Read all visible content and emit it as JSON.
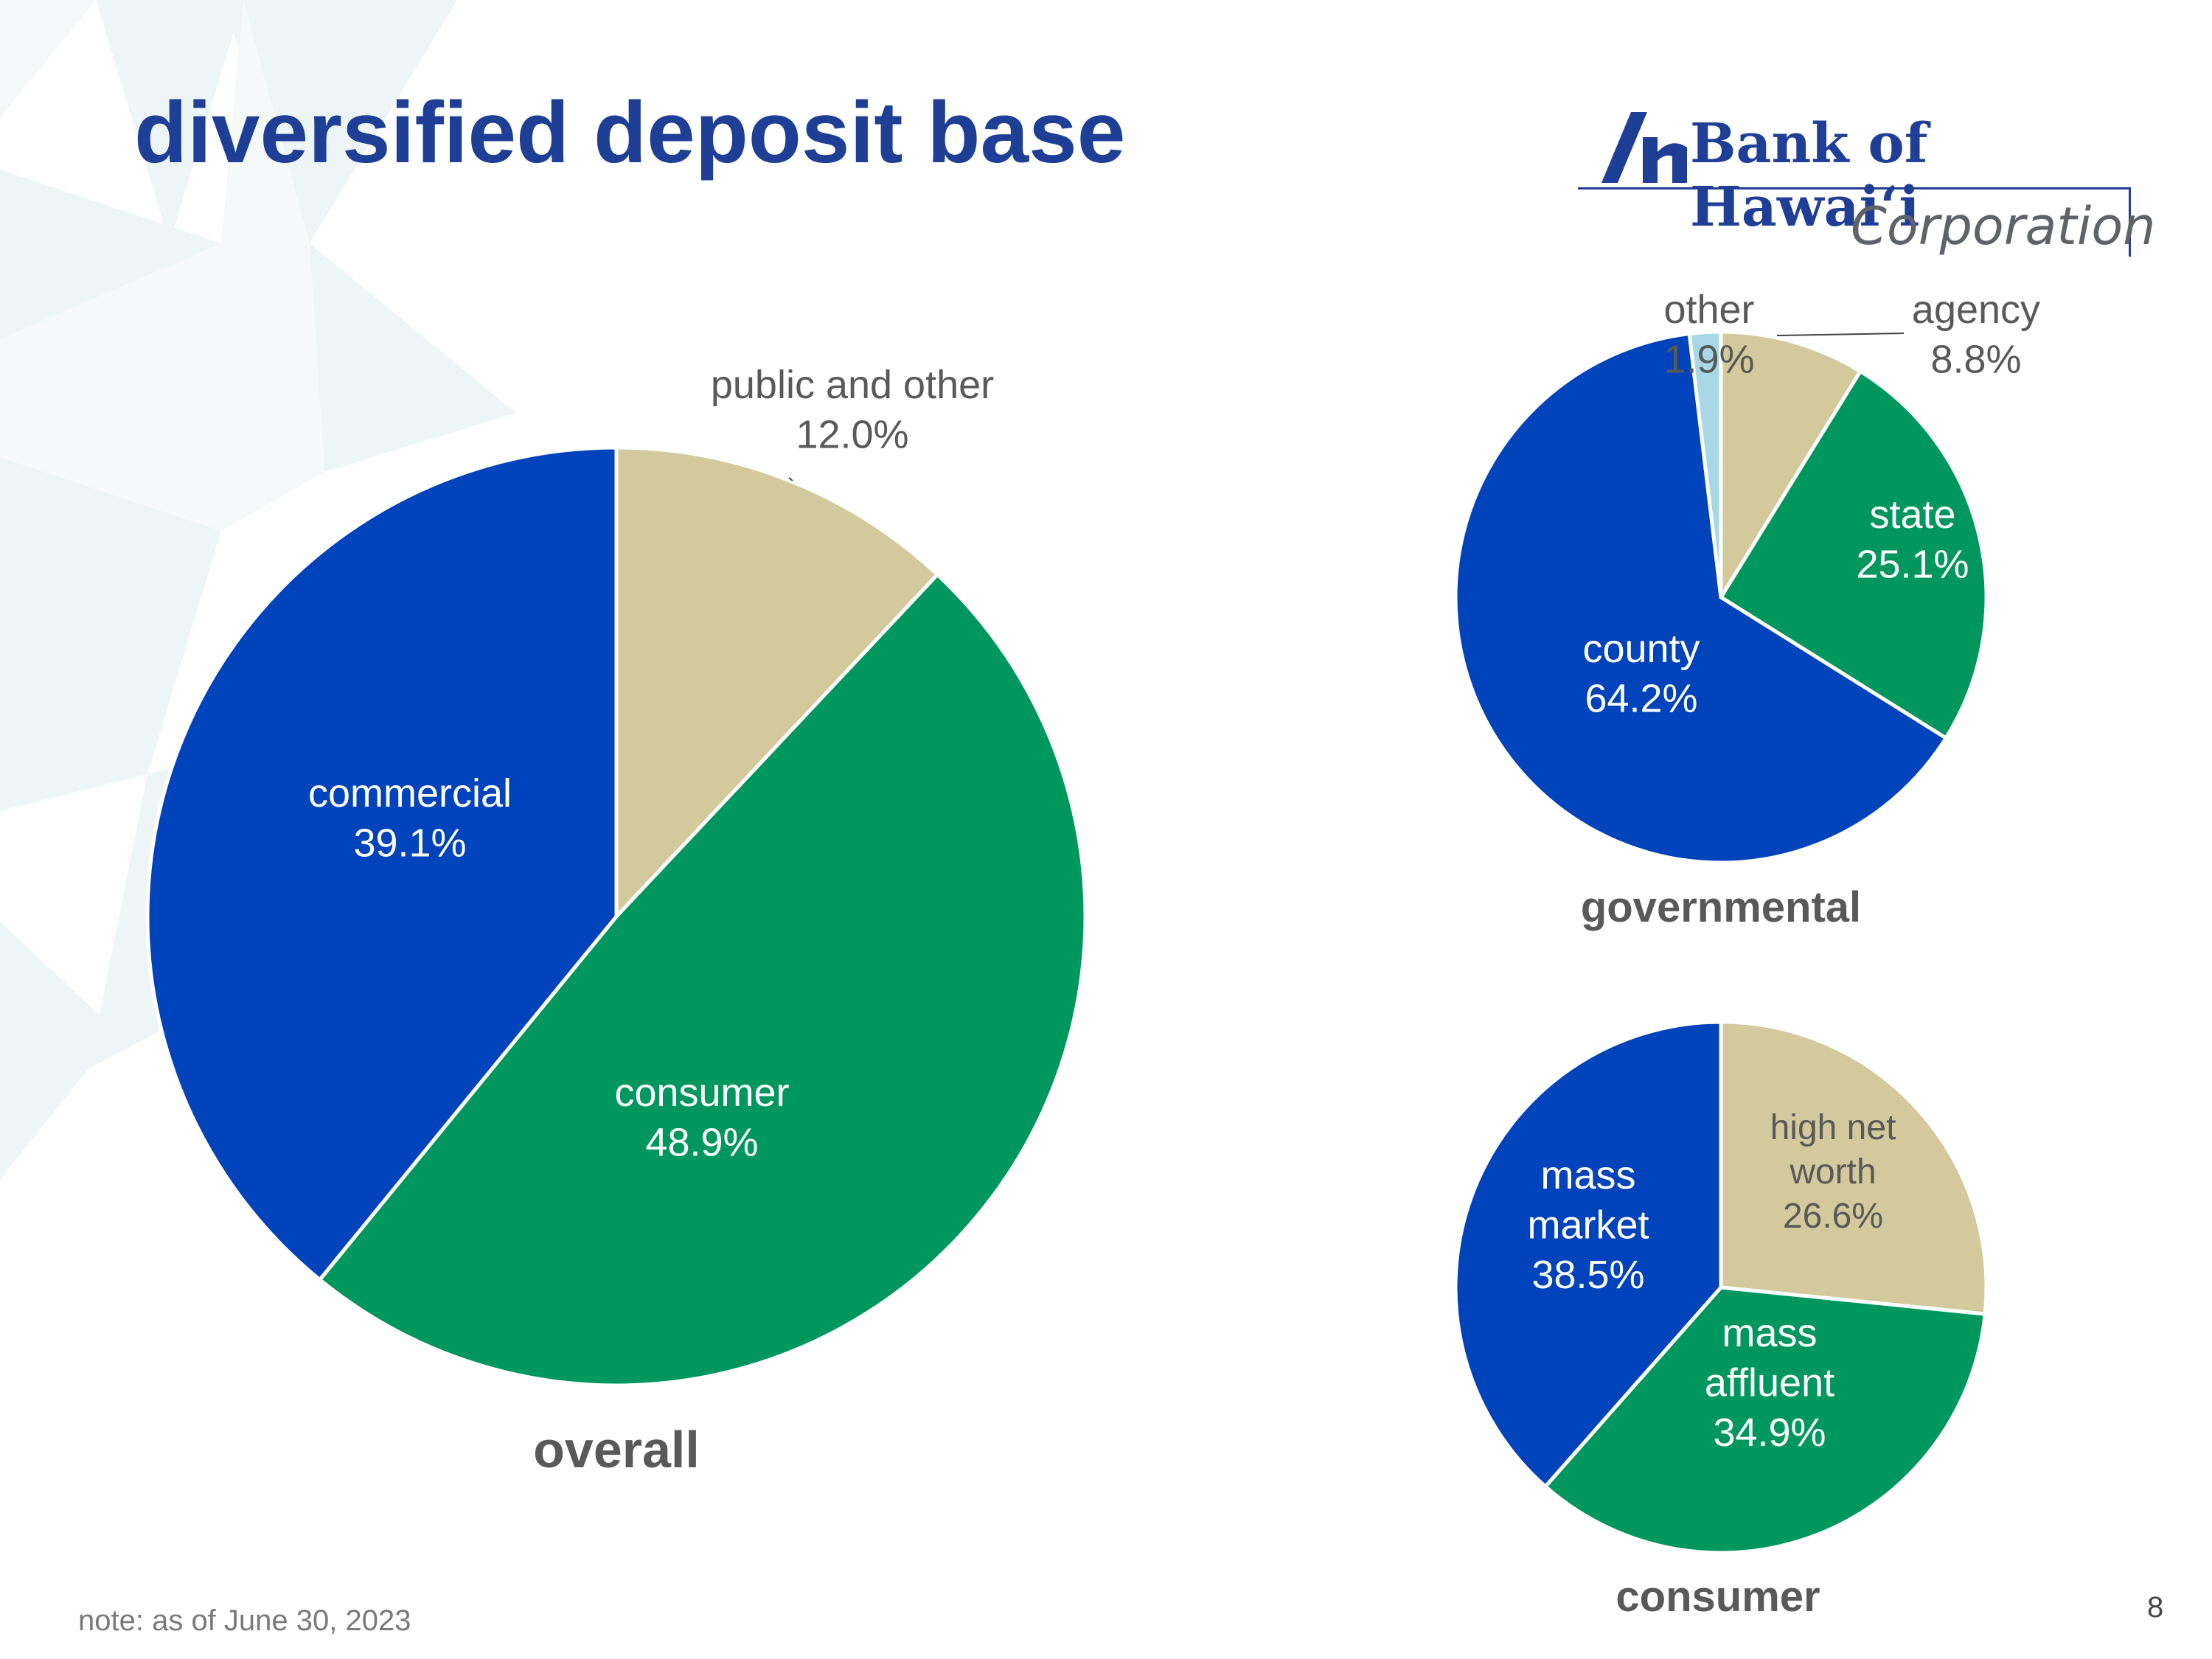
{
  "title": "diversified deposit base",
  "logo": {
    "name": "Bank of Hawaiʻi",
    "subtitle": "Corporation",
    "mark": "bank-of-hawaii-mark"
  },
  "note": "note: as of June 30, 2023",
  "page_number": "8",
  "colors": {
    "blue": "#0043bb",
    "green": "#00975f",
    "tan": "#d3c99c",
    "light_blue": "#a8d8e6",
    "title_blue": "#1f3f96",
    "caption_gray": "#595959"
  },
  "chart_data": [
    {
      "type": "pie",
      "title": "overall",
      "slices": [
        {
          "label": "public and other",
          "value": 12.0,
          "value_label": "12.0%",
          "color": "#d3c99c"
        },
        {
          "label": "consumer",
          "value": 48.9,
          "value_label": "48.9%",
          "color": "#00975f"
        },
        {
          "label": "commercial",
          "value": 39.1,
          "value_label": "39.1%",
          "color": "#0043bb"
        }
      ]
    },
    {
      "type": "pie",
      "title": "governmental",
      "slices": [
        {
          "label": "agency",
          "value": 8.8,
          "value_label": "8.8%",
          "color": "#d3c99c"
        },
        {
          "label": "state",
          "value": 25.1,
          "value_label": "25.1%",
          "color": "#00975f"
        },
        {
          "label": "county",
          "value": 64.2,
          "value_label": "64.2%",
          "color": "#0043bb"
        },
        {
          "label": "other",
          "value": 1.9,
          "value_label": "1.9%",
          "color": "#a8d8e6"
        }
      ]
    },
    {
      "type": "pie",
      "title": "consumer",
      "slices": [
        {
          "label": "high net worth",
          "value": 26.6,
          "value_label": "26.6%",
          "color": "#d3c99c"
        },
        {
          "label": "mass affluent",
          "value": 34.9,
          "value_label": "34.9%",
          "color": "#00975f"
        },
        {
          "label": "mass market",
          "value": 38.5,
          "value_label": "38.5%",
          "color": "#0043bb"
        }
      ]
    }
  ]
}
